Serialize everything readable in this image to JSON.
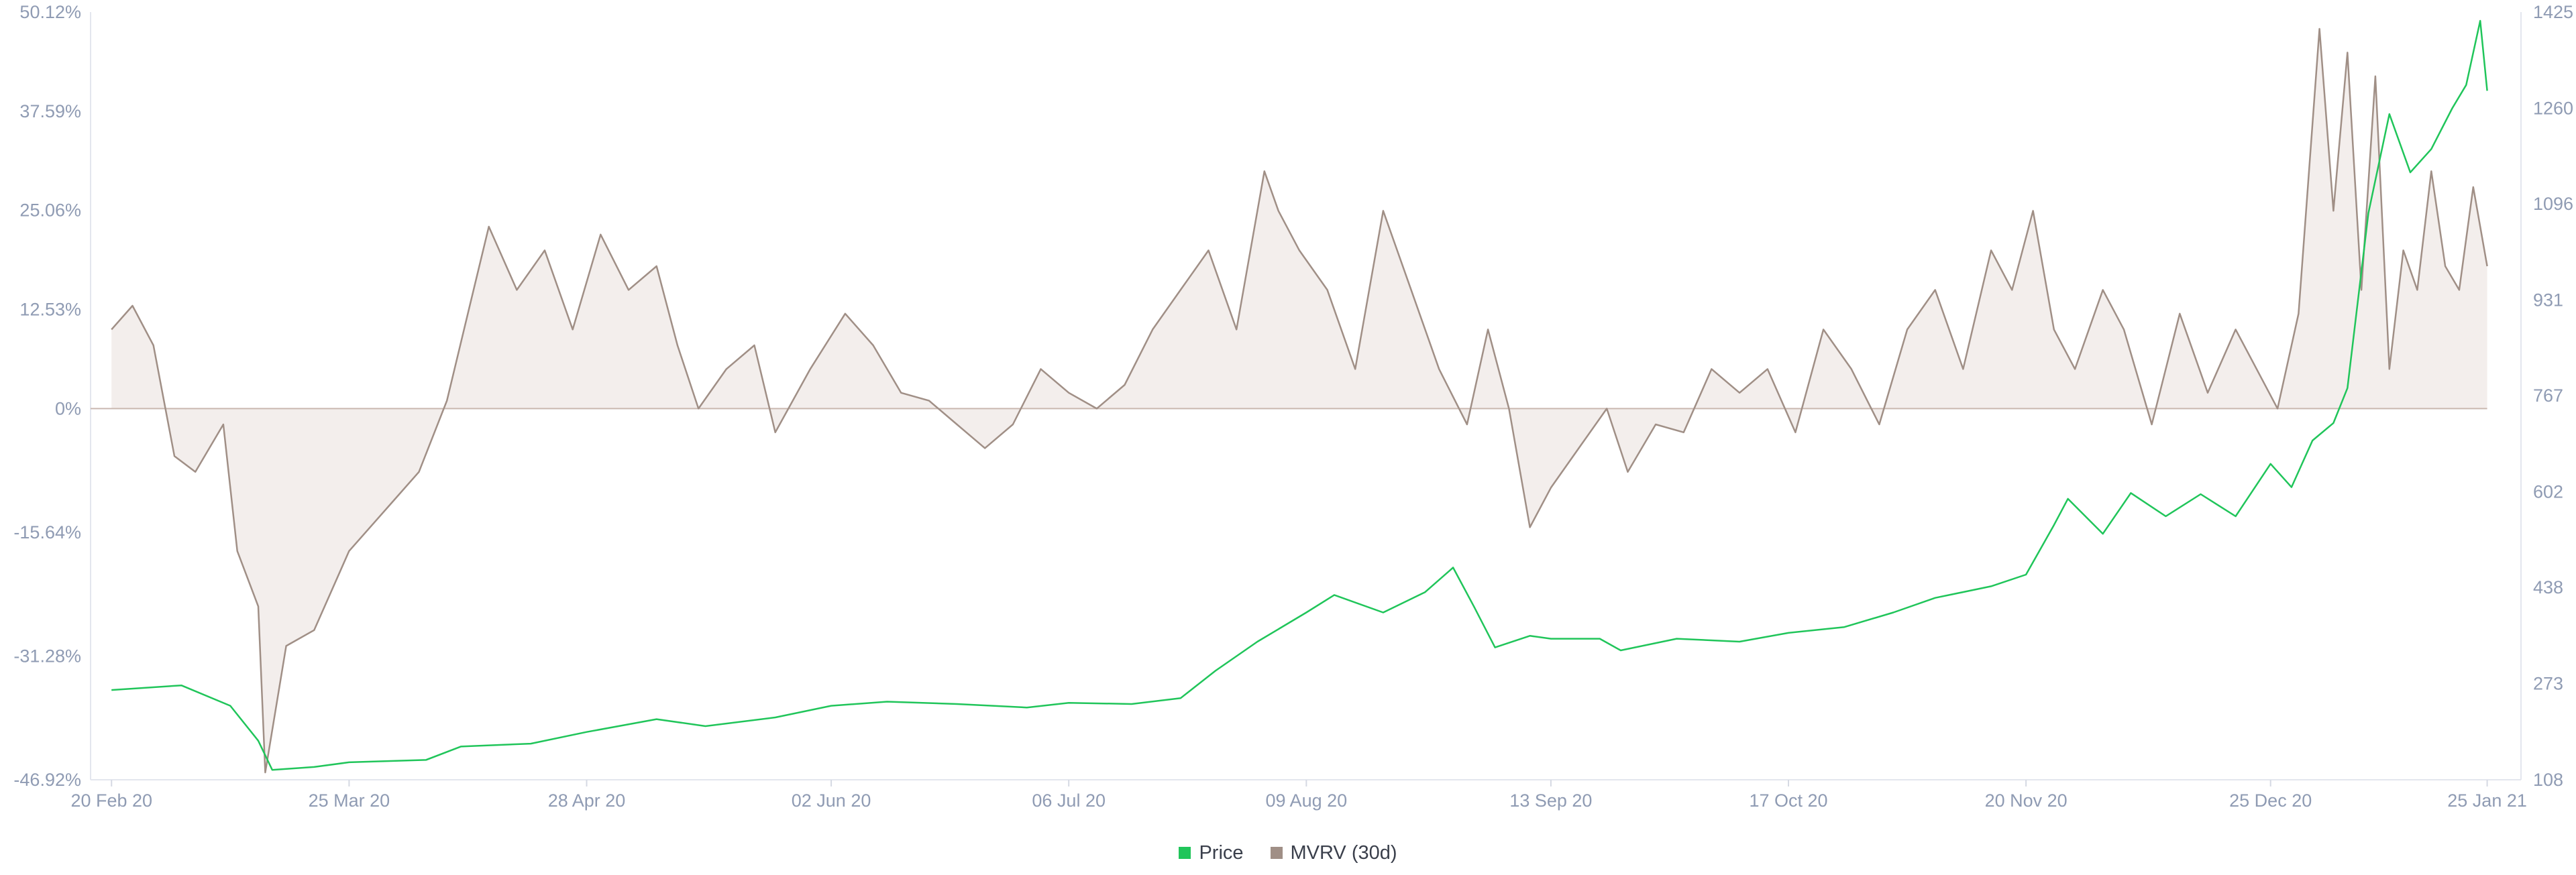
{
  "chart_data": {
    "type": "line",
    "title": "",
    "x_ticks": [
      "20 Feb 20",
      "25 Mar 20",
      "28 Apr 20",
      "02 Jun 20",
      "06 Jul 20",
      "09 Aug 20",
      "13 Sep 20",
      "17 Oct 20",
      "20 Nov 20",
      "25 Dec 20",
      "25 Jan 21"
    ],
    "y_left": {
      "ticks": [
        "50.12%",
        "37.59%",
        "25.06%",
        "12.53%",
        "0%",
        "-15.64%",
        "-31.28%",
        "-46.92%"
      ],
      "range": [
        -46.92,
        50.12
      ],
      "unit": "%"
    },
    "y_right": {
      "ticks": [
        "1425",
        "1260",
        "1096",
        "931",
        "767",
        "602",
        "438",
        "273",
        "108"
      ],
      "range": [
        108,
        1425
      ]
    },
    "legend": [
      {
        "label": "Price",
        "color": "#20c55a"
      },
      {
        "label": "MVRV (30d)",
        "color": "#a08f86"
      }
    ],
    "grid": false,
    "legend_position": "bottom-center",
    "series": [
      {
        "name": "Price",
        "axis": "right",
        "color": "#20c55a",
        "x": [
          "2020-02-20",
          "2020-03-01",
          "2020-03-08",
          "2020-03-12",
          "2020-03-14",
          "2020-03-20",
          "2020-03-25",
          "2020-04-05",
          "2020-04-10",
          "2020-04-20",
          "2020-04-28",
          "2020-05-08",
          "2020-05-15",
          "2020-05-25",
          "2020-06-02",
          "2020-06-10",
          "2020-06-20",
          "2020-06-30",
          "2020-07-06",
          "2020-07-15",
          "2020-07-22",
          "2020-07-27",
          "2020-08-02",
          "2020-08-09",
          "2020-08-13",
          "2020-08-20",
          "2020-08-26",
          "2020-08-30",
          "2020-09-02",
          "2020-09-05",
          "2020-09-10",
          "2020-09-13",
          "2020-09-20",
          "2020-09-23",
          "2020-10-01",
          "2020-10-10",
          "2020-10-17",
          "2020-10-25",
          "2020-11-01",
          "2020-11-07",
          "2020-11-15",
          "2020-11-20",
          "2020-11-24",
          "2020-11-26",
          "2020-12-01",
          "2020-12-05",
          "2020-12-10",
          "2020-12-15",
          "2020-12-20",
          "2020-12-25",
          "2020-12-28",
          "2020-12-31",
          "2021-01-03",
          "2021-01-05",
          "2021-01-08",
          "2021-01-11",
          "2021-01-14",
          "2021-01-17",
          "2021-01-20",
          "2021-01-22",
          "2021-01-24",
          "2021-01-25"
        ],
        "y": [
          262,
          270,
          235,
          175,
          125,
          130,
          138,
          142,
          165,
          170,
          190,
          212,
          200,
          215,
          235,
          242,
          238,
          232,
          240,
          238,
          248,
          295,
          345,
          395,
          425,
          395,
          430,
          472,
          405,
          335,
          355,
          350,
          350,
          330,
          350,
          345,
          360,
          370,
          395,
          420,
          440,
          460,
          545,
          590,
          530,
          600,
          560,
          598,
          560,
          650,
          610,
          690,
          720,
          780,
          1080,
          1250,
          1150,
          1190,
          1260,
          1300,
          1410,
          1290
        ]
      },
      {
        "name": "MVRV (30d)",
        "axis": "left",
        "color": "#a08f86",
        "x": [
          "2020-02-20",
          "2020-02-23",
          "2020-02-26",
          "2020-02-29",
          "2020-03-03",
          "2020-03-07",
          "2020-03-09",
          "2020-03-12",
          "2020-03-13",
          "2020-03-16",
          "2020-03-20",
          "2020-03-25",
          "2020-03-31",
          "2020-04-04",
          "2020-04-08",
          "2020-04-11",
          "2020-04-14",
          "2020-04-18",
          "2020-04-22",
          "2020-04-26",
          "2020-04-30",
          "2020-05-04",
          "2020-05-08",
          "2020-05-11",
          "2020-05-14",
          "2020-05-18",
          "2020-05-22",
          "2020-05-25",
          "2020-05-30",
          "2020-06-04",
          "2020-06-08",
          "2020-06-12",
          "2020-06-16",
          "2020-06-20",
          "2020-06-24",
          "2020-06-28",
          "2020-07-02",
          "2020-07-06",
          "2020-07-10",
          "2020-07-14",
          "2020-07-18",
          "2020-07-22",
          "2020-07-26",
          "2020-07-30",
          "2020-08-03",
          "2020-08-05",
          "2020-08-08",
          "2020-08-12",
          "2020-08-16",
          "2020-08-20",
          "2020-08-24",
          "2020-08-28",
          "2020-09-01",
          "2020-09-04",
          "2020-09-07",
          "2020-09-10",
          "2020-09-13",
          "2020-09-17",
          "2020-09-21",
          "2020-09-24",
          "2020-09-28",
          "2020-10-02",
          "2020-10-06",
          "2020-10-10",
          "2020-10-14",
          "2020-10-18",
          "2020-10-22",
          "2020-10-26",
          "2020-10-30",
          "2020-11-03",
          "2020-11-07",
          "2020-11-11",
          "2020-11-15",
          "2020-11-18",
          "2020-11-21",
          "2020-11-24",
          "2020-11-27",
          "2020-12-01",
          "2020-12-04",
          "2020-12-08",
          "2020-12-12",
          "2020-12-16",
          "2020-12-20",
          "2020-12-23",
          "2020-12-26",
          "2020-12-29",
          "2021-01-01",
          "2021-01-03",
          "2021-01-05",
          "2021-01-07",
          "2021-01-09",
          "2021-01-11",
          "2021-01-13",
          "2021-01-15",
          "2021-01-17",
          "2021-01-19",
          "2021-01-21",
          "2021-01-23",
          "2021-01-25"
        ],
        "y": [
          10,
          13,
          8,
          -6,
          -8,
          -2,
          -18,
          -25,
          -46,
          -30,
          -28,
          -18,
          -12,
          -8,
          1,
          12,
          23,
          15,
          20,
          10,
          22,
          15,
          18,
          8,
          0,
          5,
          8,
          -3,
          5,
          12,
          8,
          2,
          1,
          -2,
          -5,
          -2,
          5,
          2,
          0,
          3,
          10,
          15,
          20,
          10,
          30,
          25,
          20,
          15,
          5,
          25,
          15,
          5,
          -2,
          10,
          0,
          -15,
          -10,
          -5,
          0,
          -8,
          -2,
          -3,
          5,
          2,
          5,
          -3,
          10,
          5,
          -2,
          10,
          15,
          5,
          20,
          15,
          25,
          10,
          5,
          15,
          10,
          -2,
          12,
          2,
          10,
          5,
          0,
          12,
          48,
          25,
          45,
          15,
          42,
          5,
          20,
          15,
          30,
          18,
          15,
          28,
          18
        ]
      }
    ]
  }
}
